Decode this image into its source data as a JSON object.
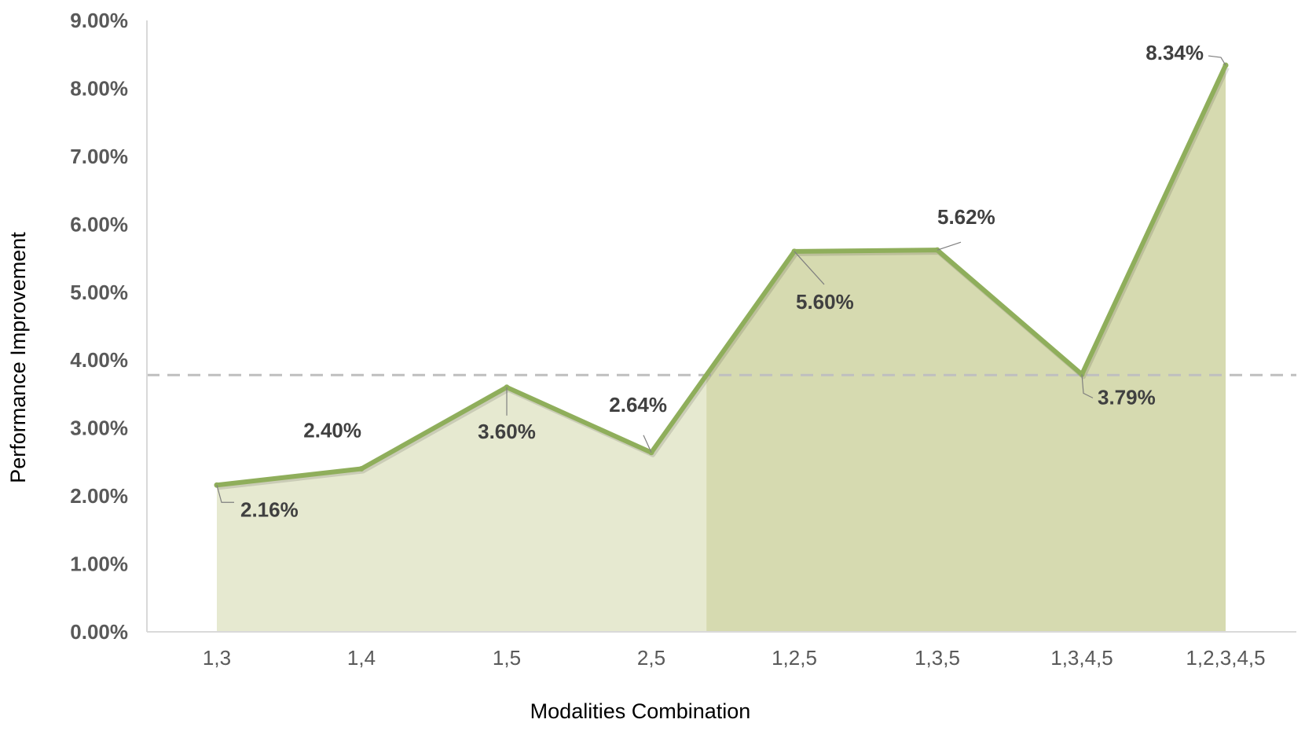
{
  "chart_data": {
    "type": "area",
    "xlabel": "Modalities Combination",
    "ylabel": "Performance Improvement",
    "categories": [
      "1,3",
      "1,4",
      "1,5",
      "2,5",
      "1,2,5",
      "1,3,5",
      "1,3,4,5",
      "1,2,3,4,5"
    ],
    "values": [
      2.16,
      2.4,
      3.6,
      2.64,
      5.6,
      5.62,
      3.79,
      8.34
    ],
    "data_labels": [
      "2.16%",
      "2.40%",
      "3.60%",
      "2.64%",
      "5.60%",
      "5.62%",
      "3.79%",
      "8.34%"
    ],
    "ylim": [
      0,
      9
    ],
    "y_ticks": [
      0,
      1,
      2,
      3,
      4,
      5,
      6,
      7,
      8,
      9
    ],
    "y_tick_labels": [
      "0.00%",
      "1.00%",
      "2.00%",
      "3.00%",
      "4.00%",
      "5.00%",
      "6.00%",
      "7.00%",
      "8.00%",
      "9.00%"
    ],
    "reference_line": {
      "value": 3.78,
      "style": "dashed"
    },
    "grid": false,
    "legend": "none",
    "colors": {
      "line": "#8fae5b",
      "area_light": "#e6e9d0",
      "area_dark": "#d6dab0",
      "reference_line": "#bfbfbf",
      "axis": "#d9d9d9",
      "leader": "#7f7f7f"
    }
  }
}
